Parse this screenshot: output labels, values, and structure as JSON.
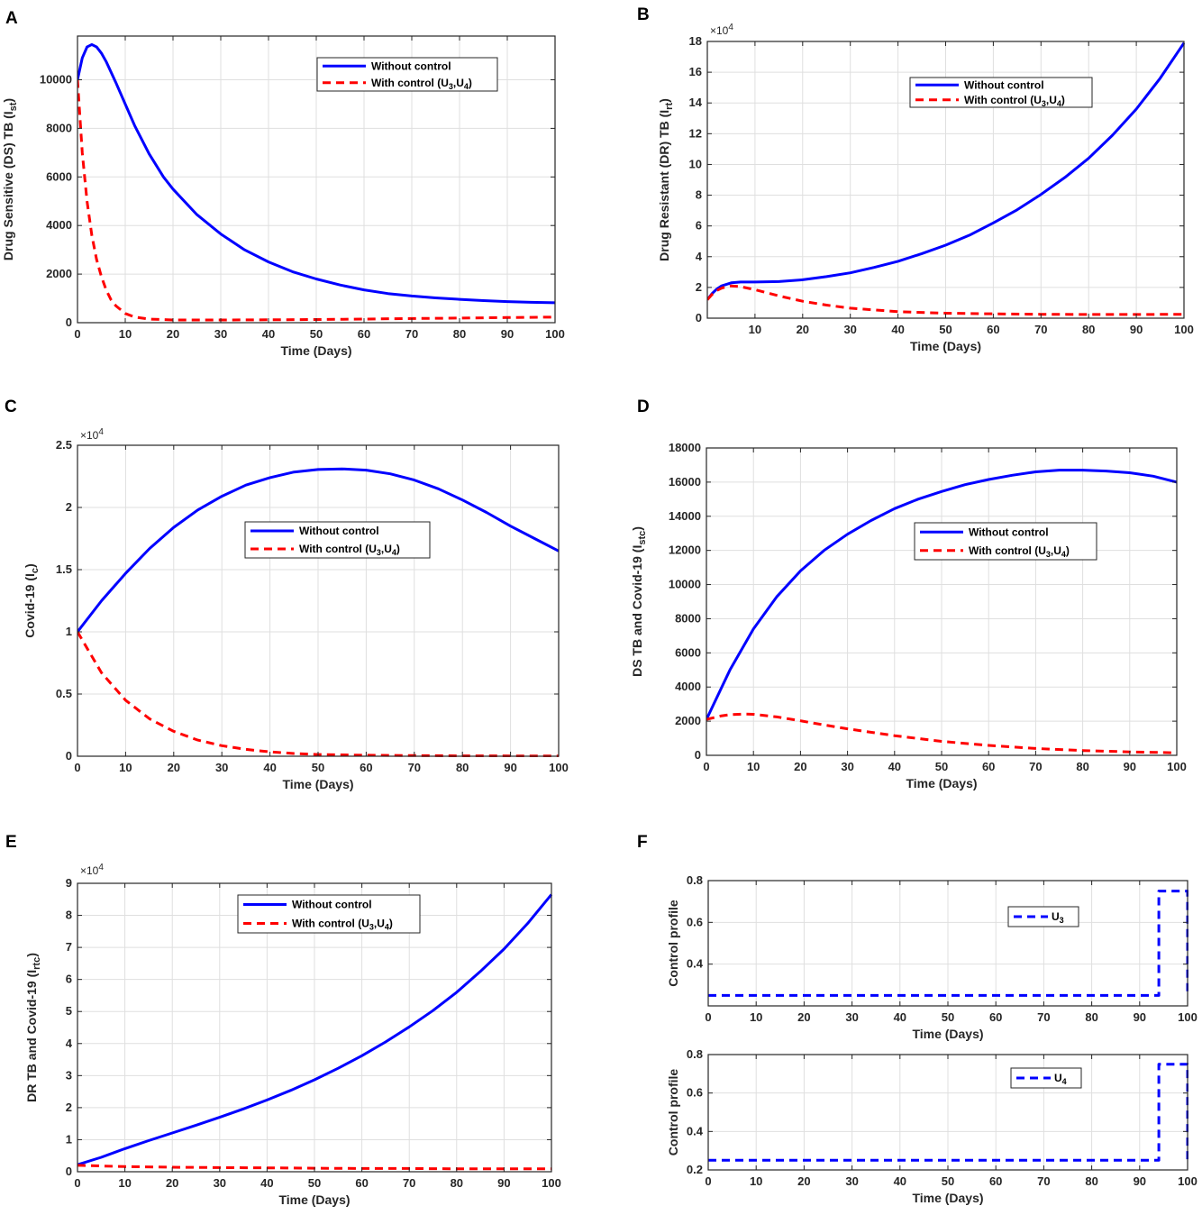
{
  "chart_data": [
    {
      "id": "A",
      "panel_label": "A",
      "type": "line",
      "ylabel": "Drug Sensitive (DS) TB (I",
      "ylabel_sub": "st",
      "ylabel_end": ")",
      "xlabel": "Time (Days)",
      "xlim": [
        0,
        100
      ],
      "ylim": [
        0,
        11800
      ],
      "xticks": [
        0,
        10,
        20,
        30,
        40,
        50,
        60,
        70,
        80,
        90,
        100
      ],
      "xtick_labels": [
        "0",
        "10",
        "20",
        "30",
        "40",
        "50",
        "60",
        "70",
        "80",
        "90",
        "100"
      ],
      "yticks": [
        0,
        2000,
        4000,
        6000,
        8000,
        10000
      ],
      "ytick_labels": [
        "0",
        "2000",
        "4000",
        "6000",
        "8000",
        "10000"
      ],
      "multiplier": "",
      "legend": {
        "position": "top-right",
        "entries": [
          "Without control",
          "With control (U"
        ],
        "sub": [
          "3",
          "4"
        ]
      },
      "series": [
        {
          "name": "Without control",
          "style": "solid",
          "color": "#0000ff",
          "x": [
            0,
            1,
            2,
            3,
            4,
            5,
            6,
            8,
            10,
            12,
            15,
            18,
            20,
            25,
            30,
            35,
            40,
            45,
            50,
            55,
            60,
            65,
            70,
            75,
            80,
            85,
            90,
            95,
            100
          ],
          "y": [
            10000,
            10900,
            11350,
            11450,
            11350,
            11100,
            10750,
            9900,
            9000,
            8100,
            6950,
            6000,
            5500,
            4450,
            3650,
            3000,
            2500,
            2100,
            1800,
            1550,
            1350,
            1200,
            1100,
            1020,
            960,
            910,
            870,
            840,
            820
          ]
        },
        {
          "name": "With control (U3,U4)",
          "style": "dashed",
          "color": "#ff0000",
          "x": [
            0,
            1,
            2,
            3,
            4,
            5,
            6,
            7,
            8,
            10,
            12,
            15,
            20,
            30,
            40,
            50,
            60,
            70,
            80,
            90,
            100
          ],
          "y": [
            10000,
            7000,
            5000,
            3600,
            2600,
            1900,
            1350,
            950,
            700,
            380,
            230,
            150,
            110,
            110,
            120,
            130,
            150,
            170,
            190,
            210,
            230
          ]
        }
      ]
    },
    {
      "id": "B",
      "panel_label": "B",
      "type": "line",
      "ylabel": "Drug Resistant (DR) TB (I",
      "ylabel_sub": "rt",
      "ylabel_end": ")",
      "xlabel": "Time (Days)",
      "xlim": [
        0,
        100
      ],
      "ylim": [
        0,
        18
      ],
      "xticks": [
        10,
        20,
        30,
        40,
        50,
        60,
        70,
        80,
        90,
        100
      ],
      "xtick_labels": [
        "10",
        "20",
        "30",
        "40",
        "50",
        "60",
        "70",
        "80",
        "90",
        "100"
      ],
      "yticks": [
        0,
        2,
        4,
        6,
        8,
        10,
        12,
        14,
        16,
        18
      ],
      "ytick_labels": [
        "0",
        "2",
        "4",
        "6",
        "8",
        "10",
        "12",
        "14",
        "16",
        "18"
      ],
      "multiplier": "×10",
      "multiplier_exp": "4",
      "legend": {
        "position": "top-right",
        "entries": [
          "Without control",
          "With control (U"
        ],
        "sub": [
          "3",
          "4"
        ]
      },
      "series": [
        {
          "name": "Without control",
          "style": "solid",
          "color": "#0000ff",
          "x": [
            0,
            1,
            2,
            3,
            5,
            7,
            10,
            15,
            20,
            25,
            30,
            35,
            40,
            45,
            50,
            55,
            60,
            65,
            70,
            75,
            80,
            85,
            90,
            95,
            100
          ],
          "y": [
            1.2,
            1.6,
            1.9,
            2.1,
            2.3,
            2.35,
            2.35,
            2.38,
            2.5,
            2.7,
            2.95,
            3.3,
            3.7,
            4.2,
            4.75,
            5.4,
            6.2,
            7.05,
            8.05,
            9.15,
            10.4,
            11.9,
            13.6,
            15.6,
            17.9
          ]
        },
        {
          "name": "With control (U3,U4)",
          "style": "dashed",
          "color": "#ff0000",
          "x": [
            0,
            1,
            2,
            3,
            4,
            5,
            7,
            10,
            15,
            20,
            25,
            30,
            40,
            50,
            60,
            70,
            80,
            90,
            100
          ],
          "y": [
            1.2,
            1.55,
            1.8,
            1.95,
            2.05,
            2.1,
            2.05,
            1.85,
            1.45,
            1.1,
            0.85,
            0.65,
            0.42,
            0.32,
            0.28,
            0.25,
            0.24,
            0.24,
            0.25
          ]
        }
      ]
    },
    {
      "id": "C",
      "panel_label": "C",
      "type": "line",
      "ylabel": "Covid-19 (I",
      "ylabel_sub": "c",
      "ylabel_end": ")",
      "xlabel": "Time (Days)",
      "xlim": [
        0,
        100
      ],
      "ylim": [
        0,
        2.5
      ],
      "xticks": [
        0,
        10,
        20,
        30,
        40,
        50,
        60,
        70,
        80,
        90,
        100
      ],
      "xtick_labels": [
        "0",
        "10",
        "20",
        "30",
        "40",
        "50",
        "60",
        "70",
        "80",
        "90",
        "100"
      ],
      "yticks": [
        0,
        0.5,
        1,
        1.5,
        2,
        2.5
      ],
      "ytick_labels": [
        "0",
        "0.5",
        "1",
        "1.5",
        "2",
        "2.5"
      ],
      "multiplier": "×10",
      "multiplier_exp": "4",
      "legend": {
        "position": "center",
        "entries": [
          "Without control",
          "With control (U"
        ],
        "sub": [
          "3",
          "4"
        ]
      },
      "series": [
        {
          "name": "Without control",
          "style": "solid",
          "color": "#0000ff",
          "x": [
            0,
            5,
            10,
            15,
            20,
            25,
            30,
            35,
            40,
            45,
            50,
            55,
            60,
            65,
            70,
            75,
            80,
            85,
            90,
            95,
            100
          ],
          "y": [
            1.0,
            1.25,
            1.47,
            1.67,
            1.84,
            1.98,
            2.09,
            2.18,
            2.24,
            2.285,
            2.305,
            2.31,
            2.3,
            2.27,
            2.22,
            2.15,
            2.06,
            1.96,
            1.85,
            1.75,
            1.65
          ]
        },
        {
          "name": "With control (U3,U4)",
          "style": "dashed",
          "color": "#ff0000",
          "x": [
            0,
            5,
            10,
            15,
            20,
            25,
            30,
            35,
            40,
            45,
            50,
            60,
            70,
            80,
            90,
            100
          ],
          "y": [
            1.0,
            0.67,
            0.45,
            0.3,
            0.2,
            0.13,
            0.085,
            0.055,
            0.035,
            0.022,
            0.014,
            0.008,
            0.005,
            0.003,
            0.002,
            0.002
          ]
        }
      ]
    },
    {
      "id": "D",
      "panel_label": "D",
      "type": "line",
      "ylabel": "DS TB and Covid-19 (I",
      "ylabel_sub": "stc",
      "ylabel_end": ")",
      "xlabel": "Time (Days)",
      "xlim": [
        0,
        100
      ],
      "ylim": [
        0,
        18000
      ],
      "xticks": [
        0,
        10,
        20,
        30,
        40,
        50,
        60,
        70,
        80,
        90,
        100
      ],
      "xtick_labels": [
        "0",
        "10",
        "20",
        "30",
        "40",
        "50",
        "60",
        "70",
        "80",
        "90",
        "100"
      ],
      "yticks": [
        0,
        2000,
        4000,
        6000,
        8000,
        10000,
        12000,
        14000,
        16000,
        18000
      ],
      "ytick_labels": [
        "0",
        "2000",
        "4000",
        "6000",
        "8000",
        "10000",
        "12000",
        "14000",
        "16000",
        "18000"
      ],
      "multiplier": "",
      "legend": {
        "position": "top-right",
        "entries": [
          "Without control",
          "With control (U"
        ],
        "sub": [
          "3",
          "4"
        ]
      },
      "series": [
        {
          "name": "Without control",
          "style": "solid",
          "color": "#0000ff",
          "x": [
            0,
            5,
            10,
            15,
            20,
            25,
            30,
            35,
            40,
            45,
            50,
            55,
            60,
            65,
            70,
            75,
            80,
            85,
            90,
            95,
            100
          ],
          "y": [
            2100,
            5000,
            7400,
            9300,
            10800,
            12000,
            12950,
            13750,
            14450,
            15000,
            15450,
            15850,
            16150,
            16400,
            16600,
            16700,
            16700,
            16650,
            16550,
            16350,
            16000
          ]
        },
        {
          "name": "With control (U3,U4)",
          "style": "dashed",
          "color": "#ff0000",
          "x": [
            0,
            3,
            5,
            8,
            10,
            15,
            20,
            25,
            30,
            40,
            50,
            60,
            70,
            80,
            90,
            100
          ],
          "y": [
            2100,
            2300,
            2380,
            2420,
            2400,
            2250,
            2020,
            1780,
            1550,
            1150,
            820,
            580,
            400,
            280,
            200,
            150
          ]
        }
      ]
    },
    {
      "id": "E",
      "panel_label": "E",
      "type": "line",
      "ylabel": "DR TB and Covid-19 (I",
      "ylabel_sub": "rtc",
      "ylabel_end": ")",
      "xlabel": "Time (Days)",
      "xlim": [
        0,
        100
      ],
      "ylim": [
        0,
        9
      ],
      "xticks": [
        0,
        10,
        20,
        30,
        40,
        50,
        60,
        70,
        80,
        90,
        100
      ],
      "xtick_labels": [
        "0",
        "10",
        "20",
        "30",
        "40",
        "50",
        "60",
        "70",
        "80",
        "90",
        "100"
      ],
      "yticks": [
        0,
        1,
        2,
        3,
        4,
        5,
        6,
        7,
        8,
        9
      ],
      "ytick_labels": [
        "0",
        "1",
        "2",
        "3",
        "4",
        "5",
        "6",
        "7",
        "8",
        "9"
      ],
      "multiplier": "×10",
      "multiplier_exp": "4",
      "legend": {
        "position": "top-center",
        "entries": [
          "Without control",
          "With control (U"
        ],
        "sub": [
          "3",
          "4"
        ]
      },
      "series": [
        {
          "name": "Without control",
          "style": "solid",
          "color": "#0000ff",
          "x": [
            0,
            5,
            10,
            15,
            20,
            25,
            30,
            35,
            40,
            45,
            50,
            55,
            60,
            65,
            70,
            75,
            80,
            85,
            90,
            95,
            100
          ],
          "y": [
            0.22,
            0.45,
            0.72,
            0.97,
            1.21,
            1.45,
            1.7,
            1.96,
            2.24,
            2.54,
            2.87,
            3.23,
            3.62,
            4.05,
            4.52,
            5.03,
            5.6,
            6.25,
            6.95,
            7.75,
            8.65
          ]
        },
        {
          "name": "With control (U3,U4)",
          "style": "dashed",
          "color": "#ff0000",
          "x": [
            0,
            5,
            10,
            20,
            30,
            40,
            50,
            60,
            70,
            80,
            90,
            100
          ],
          "y": [
            0.2,
            0.18,
            0.16,
            0.14,
            0.13,
            0.12,
            0.11,
            0.1,
            0.1,
            0.09,
            0.09,
            0.09
          ]
        }
      ]
    },
    {
      "id": "F1",
      "panel_label": "F",
      "type": "line",
      "ylabel": "Control profile",
      "ylabel_sub": "",
      "ylabel_end": "",
      "xlabel": "Time (Days)",
      "xlim": [
        0,
        100
      ],
      "ylim": [
        0.2,
        0.8
      ],
      "xticks": [
        0,
        10,
        20,
        30,
        40,
        50,
        60,
        70,
        80,
        90,
        100
      ],
      "xtick_labels": [
        "0",
        "10",
        "20",
        "30",
        "40",
        "50",
        "60",
        "70",
        "80",
        "90",
        "100"
      ],
      "yticks": [
        0.4,
        0.6,
        0.8
      ],
      "ytick_labels": [
        "0.4",
        "0.6",
        "0.8"
      ],
      "multiplier": "",
      "legend": {
        "position": "right",
        "entries": [
          "U"
        ],
        "sub": [
          "3"
        ]
      },
      "series": [
        {
          "name": "U3",
          "style": "dashed",
          "color": "#0000ff",
          "x": [
            0,
            94,
            94,
            100,
            100
          ],
          "y": [
            0.25,
            0.25,
            0.75,
            0.75,
            0.25
          ]
        }
      ]
    },
    {
      "id": "F2",
      "panel_label": "",
      "type": "line",
      "ylabel": "Control profile",
      "ylabel_sub": "",
      "ylabel_end": "",
      "xlabel": "Time (Days)",
      "xlim": [
        0,
        100
      ],
      "ylim": [
        0.2,
        0.8
      ],
      "xticks": [
        0,
        10,
        20,
        30,
        40,
        50,
        60,
        70,
        80,
        90,
        100
      ],
      "xtick_labels": [
        "0",
        "10",
        "20",
        "30",
        "40",
        "50",
        "60",
        "70",
        "80",
        "90",
        "100"
      ],
      "yticks": [
        0.2,
        0.4,
        0.6,
        0.8
      ],
      "ytick_labels": [
        "0.2",
        "0.4",
        "0.6",
        "0.8"
      ],
      "multiplier": "",
      "legend": {
        "position": "right",
        "entries": [
          "U"
        ],
        "sub": [
          "4"
        ]
      },
      "series": [
        {
          "name": "U4",
          "style": "dashed",
          "color": "#0000ff",
          "x": [
            0,
            94,
            94,
            100,
            100
          ],
          "y": [
            0.25,
            0.25,
            0.75,
            0.75,
            0.25
          ]
        }
      ]
    }
  ]
}
